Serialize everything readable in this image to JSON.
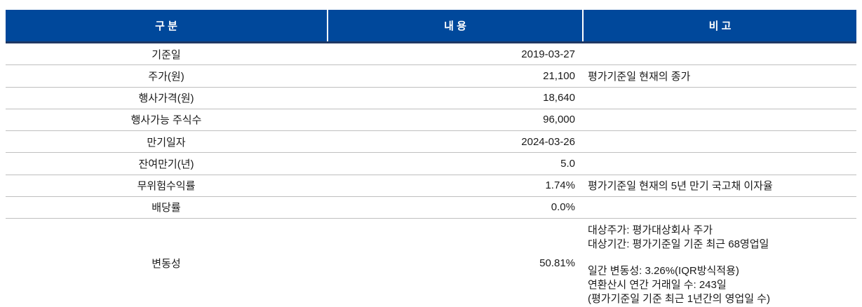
{
  "colors": {
    "header_bg": "#00489B",
    "header_text": "#FFFFFF",
    "header_bottom_border": "#1F3864",
    "row_divider": "#BFBFBF",
    "body_text": "#1A1A1A"
  },
  "table": {
    "headers": {
      "col1": "구 분",
      "col2": "내 용",
      "col3": "비 고"
    },
    "rows": [
      {
        "label": "기준일",
        "value": "2019-03-27",
        "remark": ""
      },
      {
        "label": "주가(원)",
        "value": "21,100",
        "remark": "평가기준일 현재의 종가"
      },
      {
        "label": "행사가격(원)",
        "value": "18,640",
        "remark": ""
      },
      {
        "label": "행사가능 주식수",
        "value": "96,000",
        "remark": ""
      },
      {
        "label": "만기일자",
        "value": "2024-03-26",
        "remark": ""
      },
      {
        "label": "잔여만기(년)",
        "value": "5.0",
        "remark": ""
      },
      {
        "label": "무위험수익률",
        "value": "1.74%",
        "remark": "평가기준일 현재의 5년 만기 국고채 이자율"
      },
      {
        "label": "배당률",
        "value": "0.0%",
        "remark": ""
      },
      {
        "label": "변동성",
        "value": "50.81%",
        "remark_lines": [
          "대상주가: 평가대상회사 주가",
          "대상기간: 평가기준일 기준 최근 68영업일",
          "일간 변동성: 3.26%(IQR방식적용)",
          "연환산시 연간 거래일 수: 243일",
          "(평가기준일 기준 최근 1년간의 영업일 수)"
        ]
      }
    ]
  }
}
